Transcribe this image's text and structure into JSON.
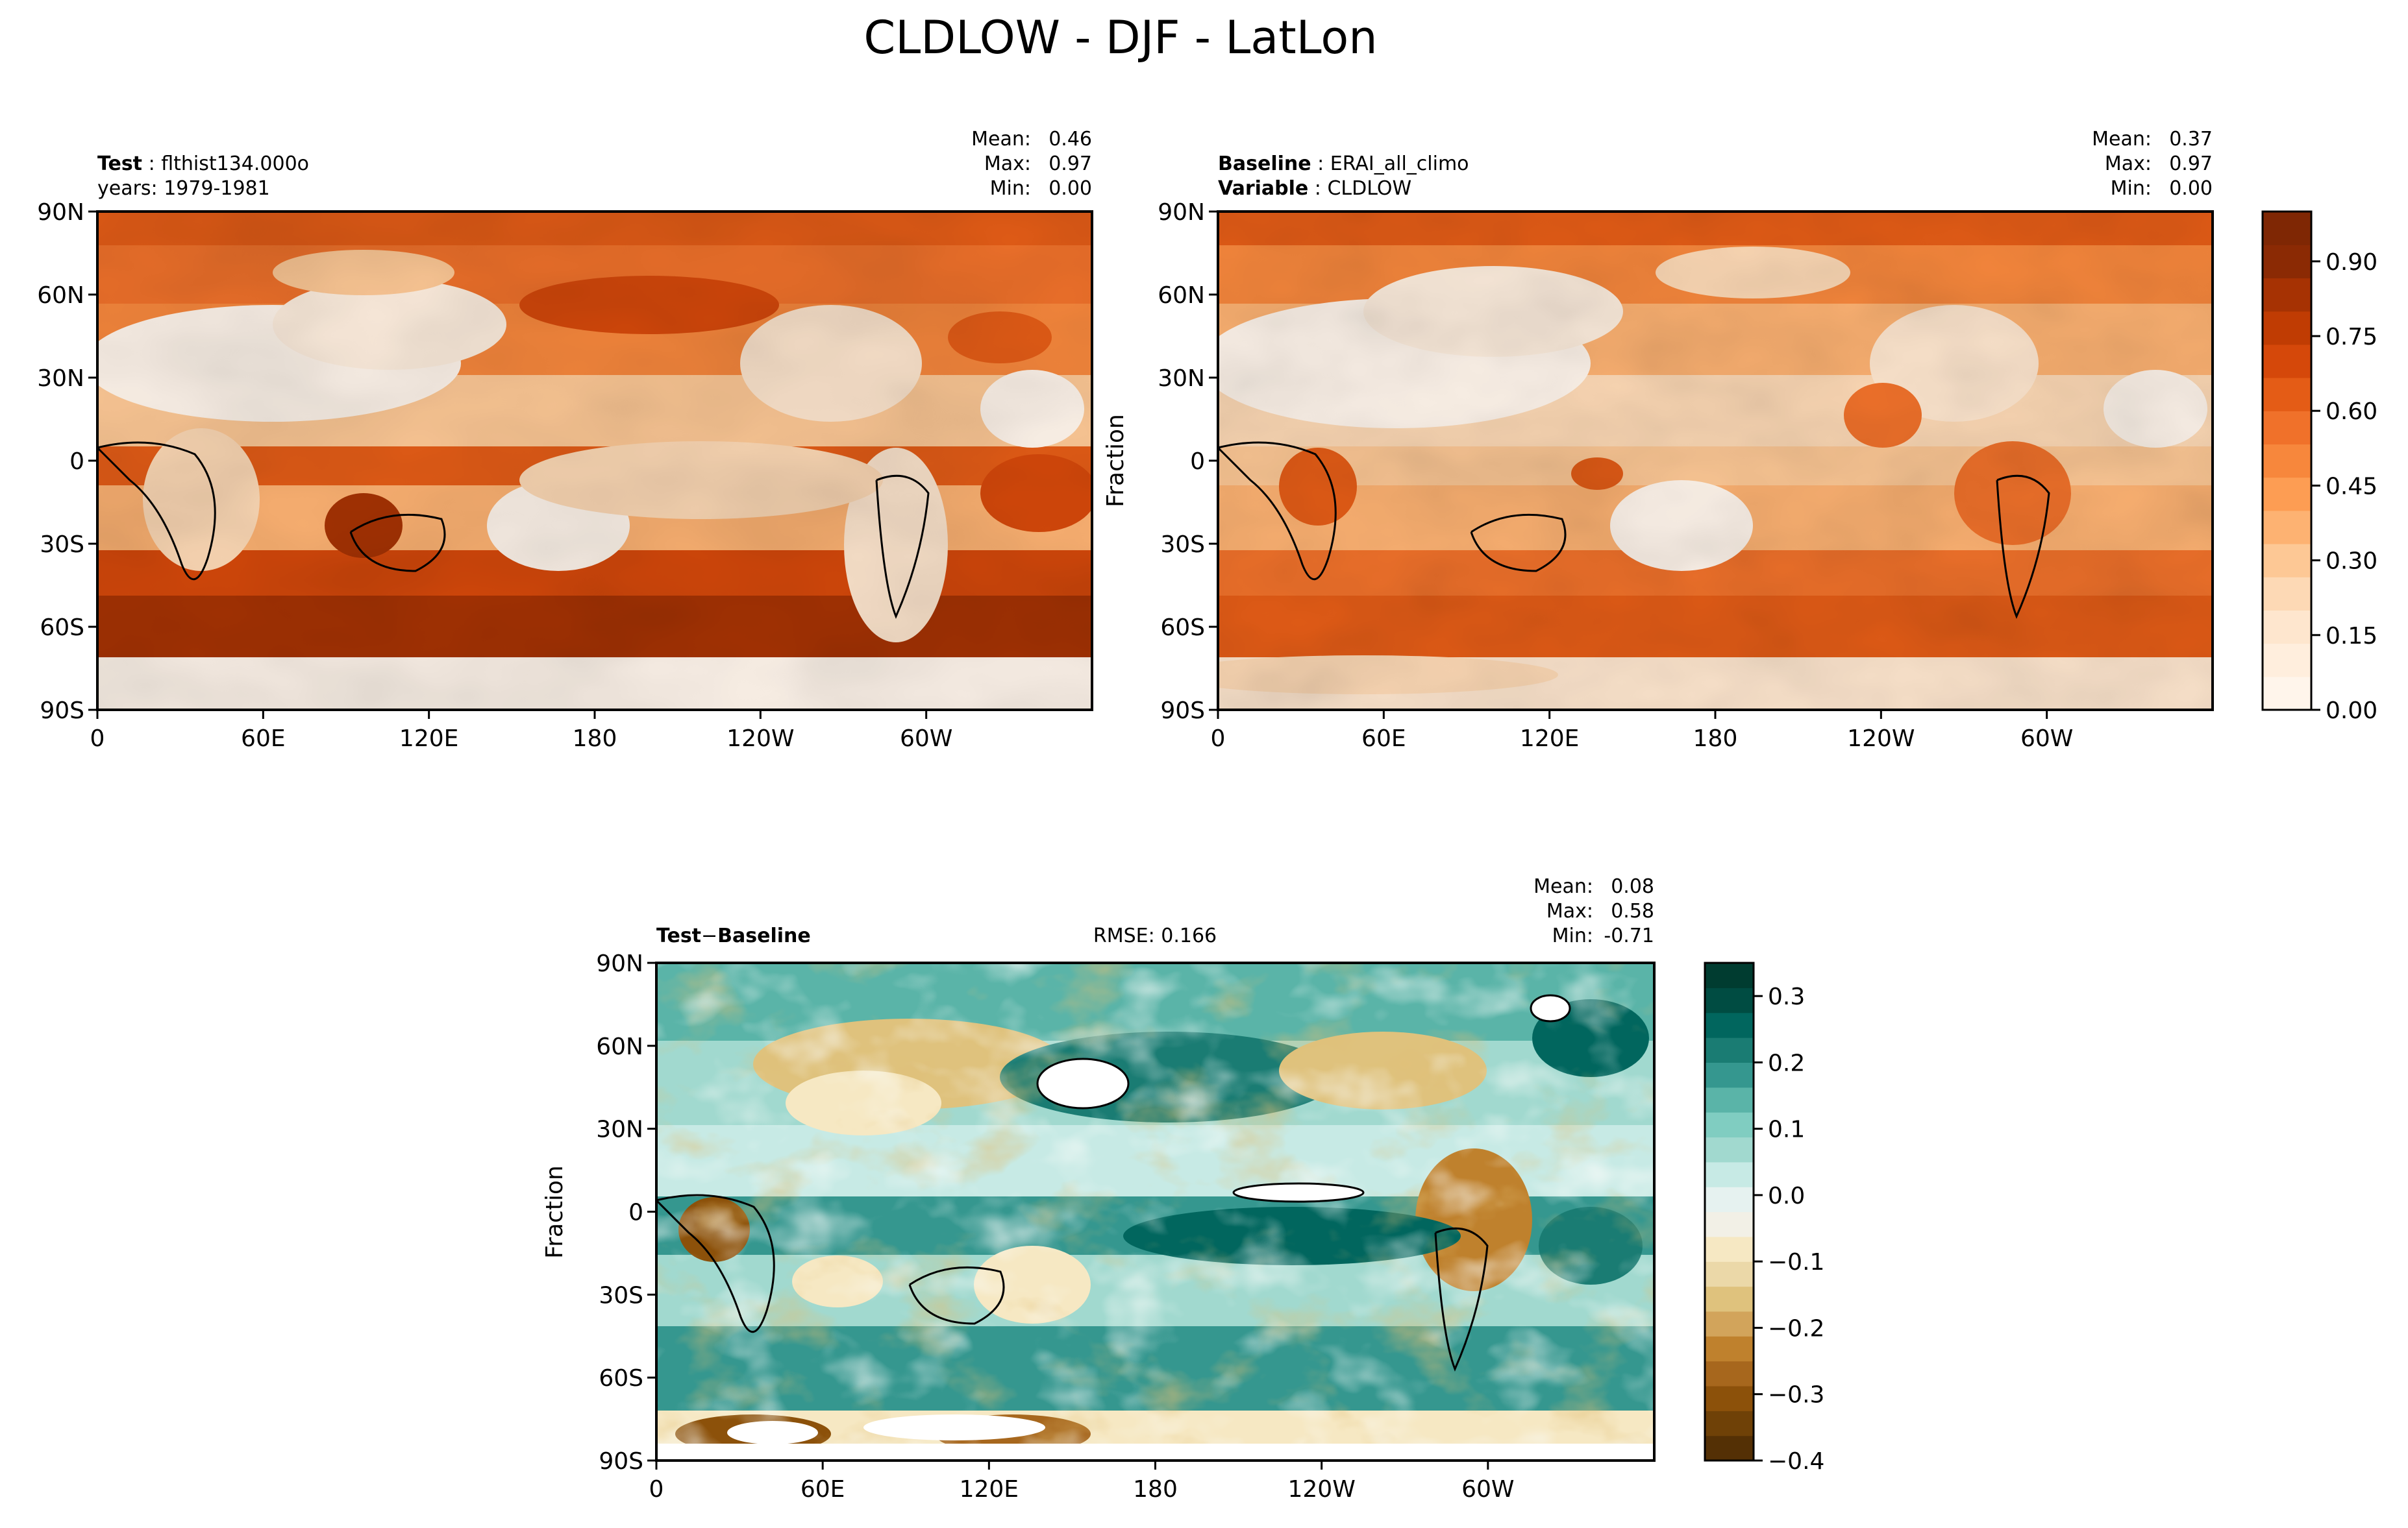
{
  "figure": {
    "title": "CLDLOW - DJF - LatLon"
  },
  "panels": [
    {
      "id": "test",
      "header_left": [
        {
          "key": "Test",
          "value": "flthist134.000o"
        },
        {
          "key": "",
          "value": "years: 1979-1981"
        }
      ],
      "stats": [
        {
          "key": "Mean:",
          "value": "0.46"
        },
        {
          "key": "Max:",
          "value": "0.97"
        },
        {
          "key": "Min:",
          "value": "0.00"
        }
      ],
      "ylabel": ""
    },
    {
      "id": "baseline",
      "header_left": [
        {
          "key": "Baseline",
          "value": "ERAI_all_climo"
        },
        {
          "key": "Variable",
          "value": "CLDLOW"
        }
      ],
      "stats": [
        {
          "key": "Mean:",
          "value": "0.37"
        },
        {
          "key": "Max:",
          "value": "0.97"
        },
        {
          "key": "Min:",
          "value": "0.00"
        }
      ],
      "ylabel": "Fraction"
    },
    {
      "id": "difference",
      "header_left": [
        {
          "key": "Test",
          "value": ""
        }
      ],
      "header_diff": {
        "left": "Test",
        "op": "−",
        "right": "Baseline"
      },
      "rmse": "RMSE: 0.166",
      "stats": [
        {
          "key": "Mean:",
          "value": "0.08"
        },
        {
          "key": "Max:",
          "value": "0.58"
        },
        {
          "key": "Min:",
          "value": "-0.71"
        }
      ],
      "ylabel": "Fraction"
    }
  ],
  "axes": {
    "x_ticks": [
      "0",
      "60E",
      "120E",
      "180",
      "120W",
      "60W"
    ],
    "y_ticks": [
      "90N",
      "60N",
      "30N",
      "0",
      "30S",
      "60S",
      "90S"
    ]
  },
  "colorbars": {
    "main": {
      "ticks": [
        "0.00",
        "0.15",
        "0.30",
        "0.45",
        "0.60",
        "0.75",
        "0.90"
      ],
      "colors": [
        "#fff5eb",
        "#ffeedd",
        "#fee6ce",
        "#fdd9b5",
        "#fdc895",
        "#fdb272",
        "#fd9d53",
        "#f7873c",
        "#f0712a",
        "#e45c16",
        "#d5480a",
        "#c03c03",
        "#a63203",
        "#8b2a04",
        "#7f2704"
      ],
      "cmap": "Oranges"
    },
    "diff": {
      "ticks": [
        "0.3",
        "0.2",
        "0.1",
        "0.0",
        "−0.1",
        "−0.2",
        "−0.3",
        "−0.4"
      ],
      "colors": [
        "#543005",
        "#6f4107",
        "#8c510a",
        "#a7671d",
        "#bf812d",
        "#d2a45b",
        "#dfc27d",
        "#ebd8a8",
        "#f6e8c3",
        "#f2f0e6",
        "#e6f2f0",
        "#c7eae5",
        "#a1d9cf",
        "#80cdc1",
        "#5ab4a8",
        "#35978f",
        "#1a7c73",
        "#01665e",
        "#004c42",
        "#003c30"
      ],
      "cmap": "BrBG"
    }
  },
  "chart_data": [
    {
      "type": "heatmap",
      "title": "Test: flthist134.000o, years: 1979-1981",
      "variable": "CLDLOW",
      "season": "DJF",
      "units": "Fraction",
      "x": [
        "0",
        "60E",
        "120E",
        "180",
        "120W",
        "60W"
      ],
      "y": [
        "90N",
        "60N",
        "30N",
        "0",
        "30S",
        "60S",
        "90S"
      ],
      "xlim": [
        0,
        360
      ],
      "ylim": [
        -90,
        90
      ],
      "zlim": [
        0.0,
        1.0
      ],
      "mean": 0.46,
      "max": 0.97,
      "min": 0.0
    },
    {
      "type": "heatmap",
      "title": "Baseline: ERAI_all_climo, Variable: CLDLOW",
      "variable": "CLDLOW",
      "season": "DJF",
      "units": "Fraction",
      "x": [
        "0",
        "60E",
        "120E",
        "180",
        "120W",
        "60W"
      ],
      "y": [
        "90N",
        "60N",
        "30N",
        "0",
        "30S",
        "60S",
        "90S"
      ],
      "xlim": [
        0,
        360
      ],
      "ylim": [
        -90,
        90
      ],
      "zlim": [
        0.0,
        1.0
      ],
      "mean": 0.37,
      "max": 0.97,
      "min": 0.0
    },
    {
      "type": "heatmap",
      "title": "Test − Baseline",
      "variable": "CLDLOW",
      "season": "DJF",
      "units": "Fraction",
      "x": [
        "0",
        "60E",
        "120E",
        "180",
        "120W",
        "60W"
      ],
      "y": [
        "90N",
        "60N",
        "30N",
        "0",
        "30S",
        "60S",
        "90S"
      ],
      "xlim": [
        0,
        360
      ],
      "ylim": [
        -90,
        90
      ],
      "zlim": [
        -0.4,
        0.35
      ],
      "rmse": 0.166,
      "mean": 0.08,
      "max": 0.58,
      "min": -0.71
    }
  ]
}
